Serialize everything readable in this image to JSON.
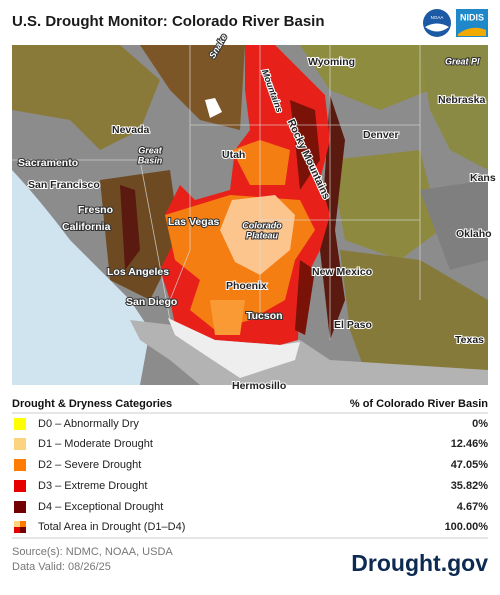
{
  "header": {
    "title": "U.S. Drought Monitor: Colorado River Basin",
    "logos": [
      "NOAA",
      "NIDIS"
    ]
  },
  "map": {
    "labels": [
      "Wyoming",
      "Snake",
      "Mountains",
      "Great Pl",
      "Nebraska",
      "Nevada",
      "Great",
      "Basin",
      "Utah",
      "Rocky Mountains",
      "Denver",
      "Sacramento",
      "San Francisco",
      "Kans",
      "Fresno",
      "California",
      "Las Vegas",
      "Colorado",
      "Plateau",
      "Oklaho",
      "Los Angeles",
      "New Mexico",
      "Phoenix",
      "San Diego",
      "Tucson",
      "El Paso",
      "Texas",
      "Hermosillo"
    ]
  },
  "legend": {
    "heading": "Drought & Dryness Categories",
    "value_heading": "% of Colorado River Basin",
    "rows": [
      {
        "label": "D0 – Abnormally Dry",
        "value": "0%"
      },
      {
        "label": "D1 – Moderate Drought",
        "value": "12.46%"
      },
      {
        "label": "D2 – Severe Drought",
        "value": "47.05%"
      },
      {
        "label": "D3 – Extreme Drought",
        "value": "35.82%"
      },
      {
        "label": "D4 – Exceptional Drought",
        "value": "4.67%"
      },
      {
        "label": "Total Area in Drought (D1–D4)",
        "value": "100.00%"
      }
    ]
  },
  "footer": {
    "source": "Source(s): NDMC, NOAA, USDA",
    "date": "Data Valid: 08/26/25",
    "brand": "Drought.gov"
  }
}
